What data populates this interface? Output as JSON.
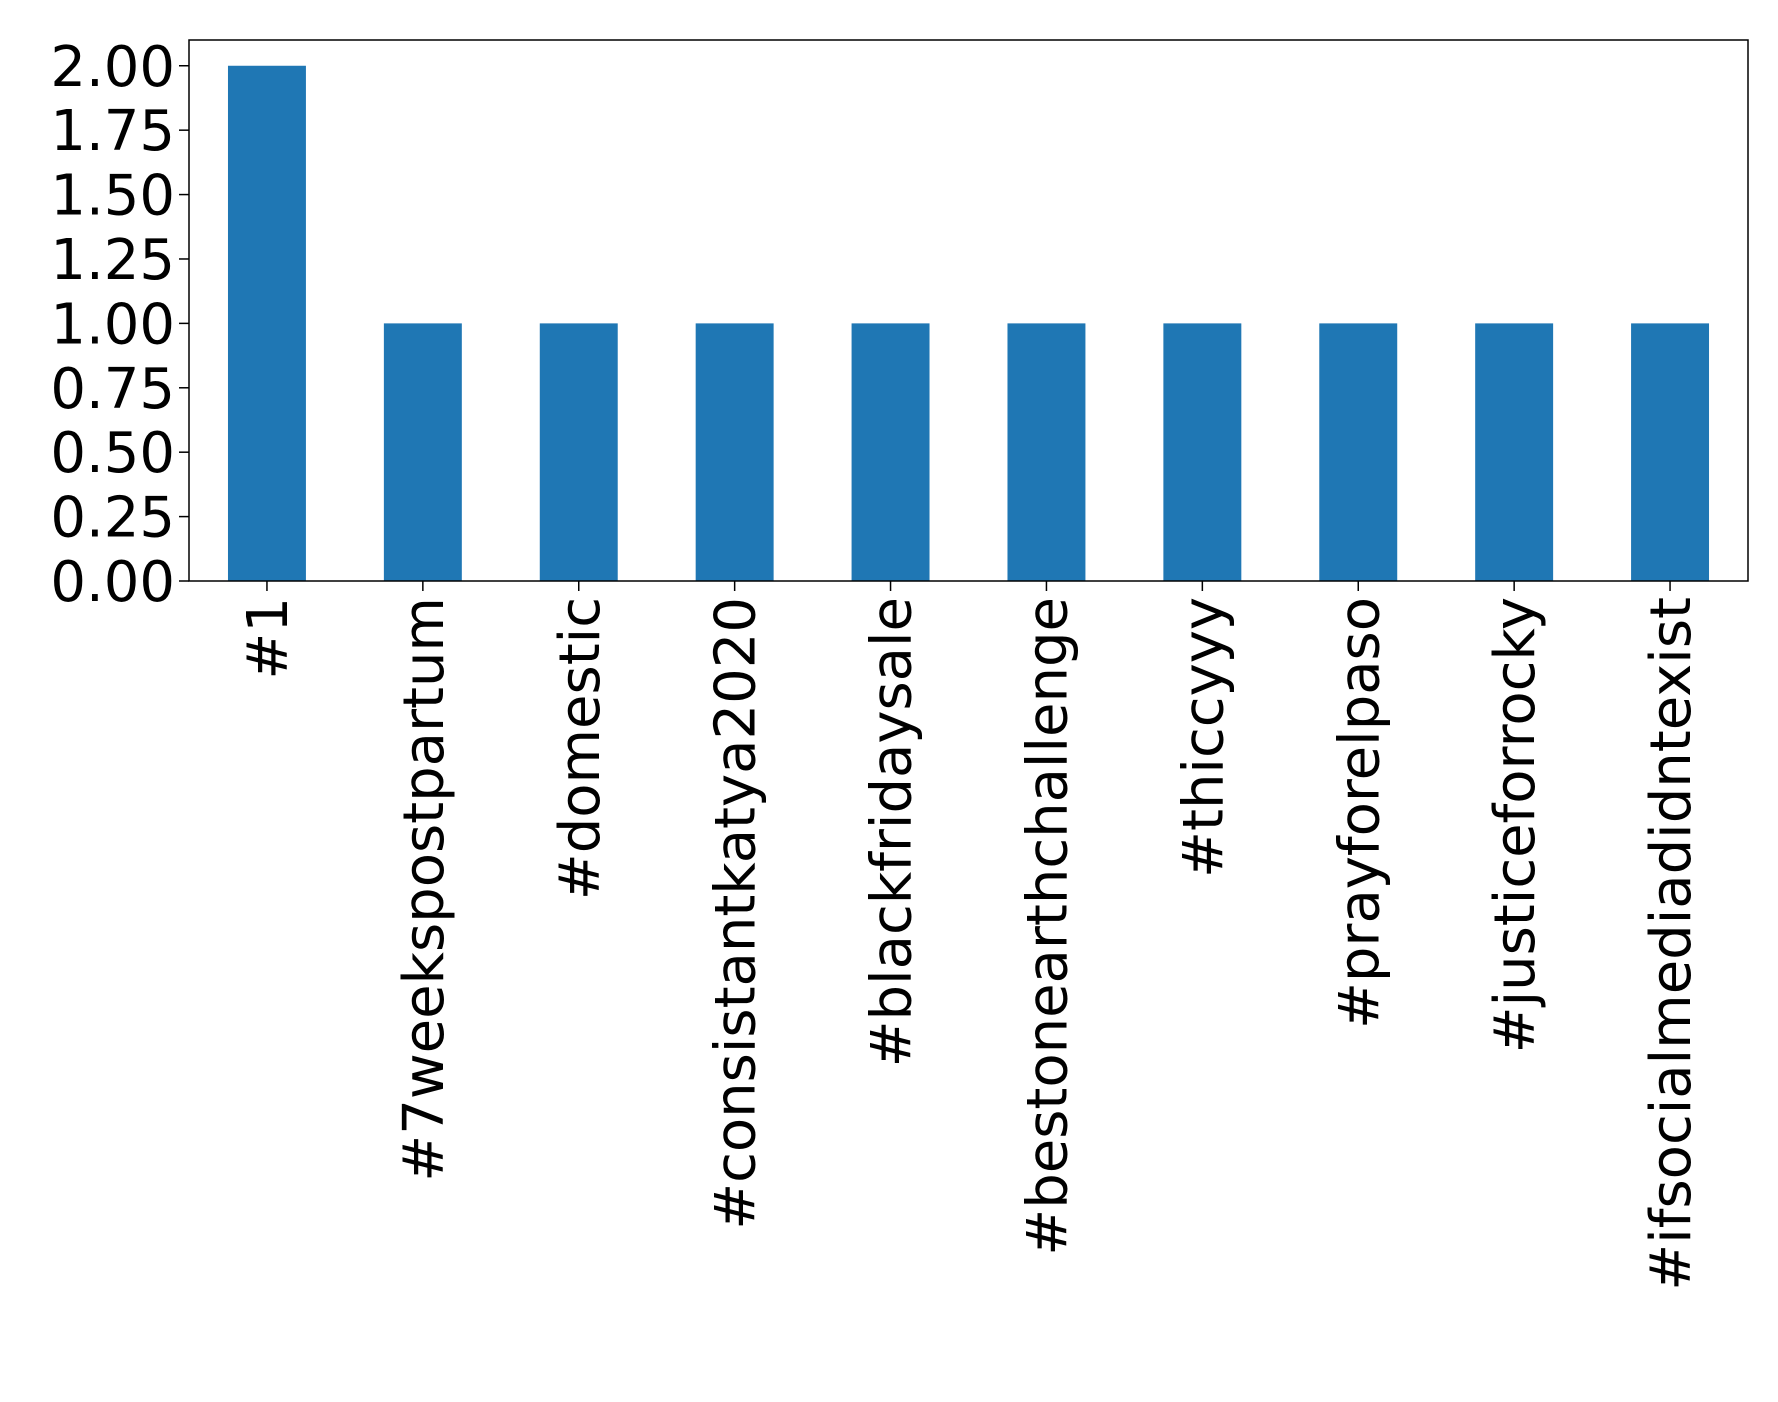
{
  "chart_data": {
    "type": "bar",
    "categories": [
      "#1",
      "#7weekspostpartum",
      "#domestic",
      "#consistantkatya2020",
      "#blackfridaysale",
      "#bestonearthchallenge",
      "#thiccyyy",
      "#prayforelpaso",
      "#justiceforrocky",
      "#ifsocialmediadidntexist"
    ],
    "values": [
      2,
      1,
      1,
      1,
      1,
      1,
      1,
      1,
      1,
      1
    ],
    "color": "#1f77b4",
    "ylim": [
      0,
      2.1
    ],
    "yticks": [
      {
        "value": 0,
        "label": "0.00"
      },
      {
        "value": 0.25,
        "label": "0.25"
      },
      {
        "value": 0.5,
        "label": "0.50"
      },
      {
        "value": 0.75,
        "label": "0.75"
      },
      {
        "value": 1,
        "label": "1.00"
      },
      {
        "value": 1.25,
        "label": "1.25"
      },
      {
        "value": 1.5,
        "label": "1.50"
      },
      {
        "value": 1.75,
        "label": "1.75"
      },
      {
        "value": 2,
        "label": "2.00"
      }
    ],
    "grid": false
  }
}
